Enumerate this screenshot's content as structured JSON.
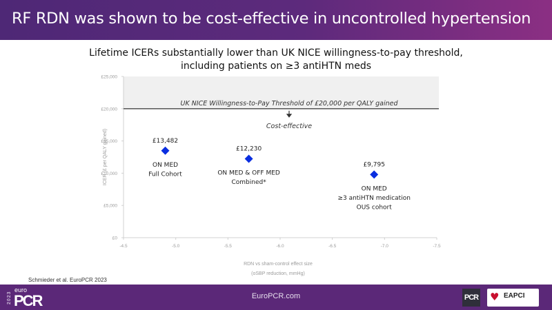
{
  "header": {
    "title": "RF RDN was shown to be cost-effective in uncontrolled hypertension"
  },
  "subtitle": {
    "line1": "Lifetime ICERs substantially lower than UK NICE willingness-to-pay threshold,",
    "line2": "including patients on ≥3 antiHTN meds"
  },
  "chart_data": {
    "type": "scatter",
    "xlabel_line1": "RDN vs sham-control effect size",
    "xlabel_line2": "(oSBP reduction, mmHg)",
    "ylabel": "ICER (£ per QALY gained)",
    "xlim": [
      -4.5,
      -7.5
    ],
    "ylim": [
      0,
      25000
    ],
    "x_ticks": [
      "-4.5",
      "-5.0",
      "-5.5",
      "-6.0",
      "-6.5",
      "-7.0",
      "-7.5"
    ],
    "x_tick_values": [
      -4.5,
      -5.0,
      -5.5,
      -6.0,
      -6.5,
      -7.0,
      -7.5
    ],
    "y_ticks": [
      "£0",
      "£5,000",
      "£10,000",
      "£15,000",
      "£20,000",
      "£25,000"
    ],
    "y_tick_values": [
      0,
      5000,
      10000,
      15000,
      20000,
      25000
    ],
    "grid": false,
    "marker_color": "#0a2ee0",
    "threshold": {
      "value": 20000,
      "label": "UK NICE Willingness-to-Pay  Threshold of £20,000 per QALY gained",
      "annotation": "Cost-effective"
    },
    "points": [
      {
        "x": -4.9,
        "y": 13482,
        "value_label": "£13,482",
        "label_lines": [
          "ON MED",
          "Full Cohort"
        ]
      },
      {
        "x": -5.7,
        "y": 12230,
        "value_label": "£12,230",
        "label_lines": [
          "ON MED & OFF MED",
          "Combined*"
        ]
      },
      {
        "x": -6.9,
        "y": 9795,
        "value_label": "£9,795",
        "label_lines": [
          "ON MED",
          "≥3 antiHTN medication",
          "OUS cohort"
        ]
      }
    ]
  },
  "citation": "Schmieder et al. EuroPCR 2023",
  "footer": {
    "url": "EuroPCR.com",
    "logo_year": "2023",
    "logo_euro": "euro",
    "logo_pcr": "PCR",
    "pcr_badge": "PCR",
    "eapci": "EAPCI"
  }
}
